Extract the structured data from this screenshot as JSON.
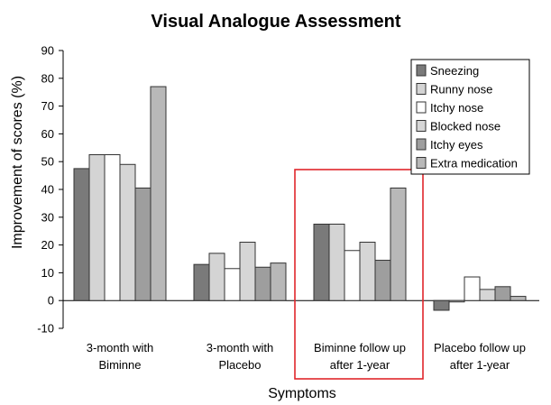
{
  "chart_data": {
    "type": "bar",
    "title": "Visual Analogue Assessment",
    "xlabel": "Symptoms",
    "ylabel": "Improvement of scores (%)",
    "ylim": [
      -10,
      90
    ],
    "yticks": [
      -10,
      0,
      10,
      20,
      30,
      40,
      50,
      60,
      70,
      80,
      90
    ],
    "categories": [
      [
        "3-month with",
        "Biminne"
      ],
      [
        "3-month with",
        "Placebo"
      ],
      [
        "Biminne follow up",
        "after 1-year"
      ],
      [
        "Placebo follow up",
        "after 1-year"
      ]
    ],
    "series": [
      {
        "name": "Sneezing",
        "color": "#7a7a7a",
        "values": [
          47.5,
          13,
          27.5,
          -3.5
        ]
      },
      {
        "name": "Runny nose",
        "color": "#d4d4d4",
        "values": [
          52.5,
          17,
          27.5,
          -0.5
        ]
      },
      {
        "name": "Itchy nose",
        "color": "#ffffff",
        "values": [
          52.5,
          11.5,
          18,
          8.5
        ]
      },
      {
        "name": "Blocked nose",
        "color": "#d6d6d6",
        "values": [
          49,
          21,
          21,
          4
        ]
      },
      {
        "name": "Itchy eyes",
        "color": "#9e9e9e",
        "values": [
          40.5,
          12,
          14.5,
          5
        ]
      },
      {
        "name": "Extra medication",
        "color": "#b8b8b8",
        "values": [
          77,
          13.5,
          40.5,
          1.5
        ]
      }
    ],
    "legend_position": "top-right",
    "grid": false,
    "highlight_category": 2,
    "highlight_color": "#e0262b"
  }
}
